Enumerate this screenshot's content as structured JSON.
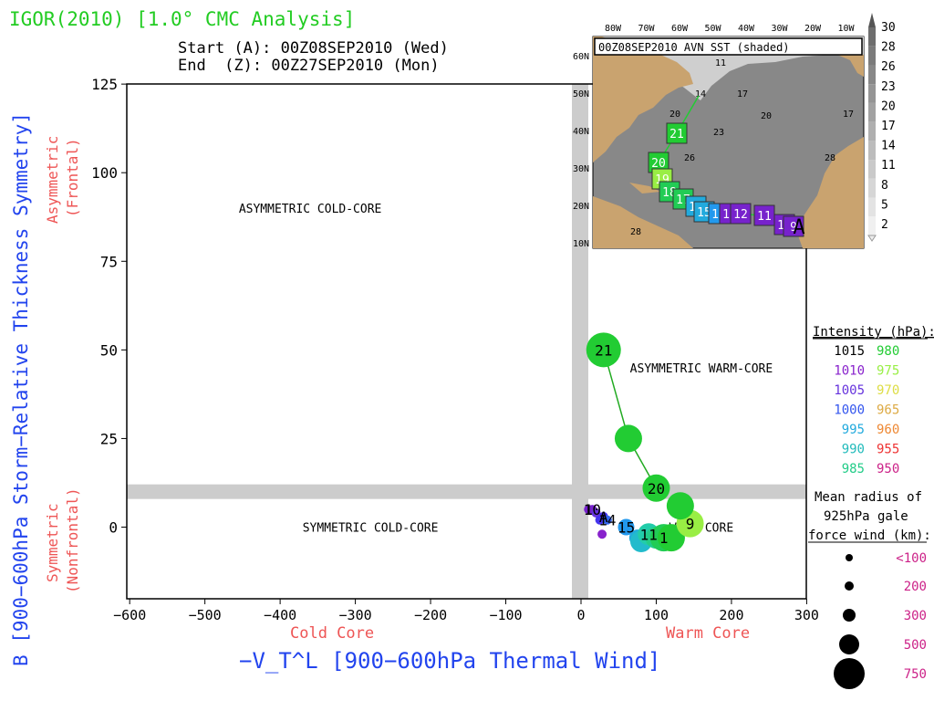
{
  "header": {
    "title": "IGOR(2010) [1.0° CMC Analysis]",
    "start": "Start (A): 00Z08SEP2010 (Wed)",
    "end": "End  (Z): 00Z27SEP2010 (Mon)"
  },
  "colors": {
    "title_green": "#22cc22",
    "axis_blue": "#2244ee",
    "label_red": "#ee5555",
    "track_green": "#22aa22",
    "quadrant_gray": "#cccccc"
  },
  "chart_data": {
    "type": "scatter",
    "xlabel": "−V_T^L [900−600hPa Thermal Wind]",
    "ylabel": "B [900−600hPa Storm−Relative Thickness Symmetry]",
    "xlim": [
      -600,
      300
    ],
    "ylim": [
      -20,
      125
    ],
    "xticks": [
      -600,
      -500,
      -400,
      -300,
      -200,
      -100,
      0,
      100,
      200,
      300
    ],
    "yticks": [
      0,
      25,
      50,
      75,
      100,
      125
    ],
    "x_left_sublabel": "Cold Core",
    "x_right_sublabel": "Warm Core",
    "y_top_sublabel": [
      "Asymmetric",
      "(Frontal)"
    ],
    "y_bottom_sublabel": [
      "Symmetric",
      "(Nonfrontal)"
    ],
    "quadrant_labels": [
      {
        "text": "ASYMMETRIC COLD-CORE",
        "x": -360,
        "y": 90
      },
      {
        "text": "ASYMMETRIC WARM-CORE",
        "x": 160,
        "y": 45
      },
      {
        "text": "SYMMETRIC COLD-CORE",
        "x": -280,
        "y": 0
      },
      {
        "text": "WARM-CORE",
        "x": 160,
        "y": 0
      }
    ],
    "points": [
      {
        "x": 10,
        "y": 5,
        "label": "1",
        "color": "#7722cc",
        "size": 1
      },
      {
        "x": 15,
        "y": 5,
        "label": "10",
        "color": "#7722cc",
        "size": 1
      },
      {
        "x": 20,
        "y": 4,
        "label": "",
        "color": "#6633dd",
        "size": 1
      },
      {
        "x": 25,
        "y": 2,
        "label": "",
        "color": "#4433ee",
        "size": 1
      },
      {
        "x": 30,
        "y": 3,
        "label": "A",
        "color": "#4433ee",
        "size": 1
      },
      {
        "x": 28,
        "y": -2,
        "label": "",
        "color": "#8822cc",
        "size": 1
      },
      {
        "x": 35,
        "y": 2,
        "label": "14",
        "color": "#3366ee",
        "size": 1
      },
      {
        "x": 60,
        "y": 0,
        "label": "15",
        "color": "#2299ee",
        "size": 2
      },
      {
        "x": 75,
        "y": -3,
        "label": "",
        "color": "#22aadd",
        "size": 2
      },
      {
        "x": 80,
        "y": -4,
        "label": "",
        "color": "#22bbcc",
        "size": 3
      },
      {
        "x": 90,
        "y": -2,
        "label": "11",
        "color": "#22ccaa",
        "size": 3
      },
      {
        "x": 100,
        "y": -3,
        "label": "",
        "color": "#22cc88",
        "size": 3
      },
      {
        "x": 110,
        "y": -3,
        "label": "1",
        "color": "#22cc55",
        "size": 4
      },
      {
        "x": 120,
        "y": -3,
        "label": "",
        "color": "#22cc33",
        "size": 4
      },
      {
        "x": 145,
        "y": 1,
        "label": "9",
        "color": "#99ee44",
        "size": 4
      },
      {
        "x": 132,
        "y": 6,
        "label": "",
        "color": "#22cc33",
        "size": 4
      },
      {
        "x": 100,
        "y": 11,
        "label": "20",
        "color": "#22cc33",
        "size": 4
      },
      {
        "x": 63,
        "y": 25,
        "label": "",
        "color": "#22cc33",
        "size": 4
      },
      {
        "x": 30,
        "y": 50,
        "label": "21",
        "color": "#22cc33",
        "size": 5
      }
    ],
    "track_line": [
      {
        "x": 100,
        "y": 11
      },
      {
        "x": 63,
        "y": 25
      },
      {
        "x": 30,
        "y": 50
      }
    ]
  },
  "inset_map": {
    "title": "00Z08SEP2010 AVN SST (shaded)",
    "lon_labels": [
      "80W",
      "70W",
      "60W",
      "50W",
      "40W",
      "30W",
      "20W",
      "10W"
    ],
    "lat_labels": [
      "60N",
      "50N",
      "40N",
      "30N",
      "20N",
      "10N"
    ],
    "sst_contours": [
      "11",
      "14",
      "17",
      "20",
      "23",
      "26",
      "17",
      "20",
      "28",
      "28"
    ],
    "colorbar_labels": [
      "30",
      "28",
      "26",
      "23",
      "20",
      "17",
      "14",
      "11",
      "8",
      "5",
      "2"
    ],
    "track_labels": [
      {
        "label": "21",
        "color": "#22cc33"
      },
      {
        "label": "20",
        "color": "#22cc33"
      },
      {
        "label": "19",
        "color": "#99ee44"
      },
      {
        "label": "18",
        "color": "#22cc55"
      },
      {
        "label": "17",
        "color": "#22cc55"
      },
      {
        "label": "16",
        "color": "#22aadd"
      },
      {
        "label": "15",
        "color": "#22aadd"
      },
      {
        "label": "14",
        "color": "#2299ee"
      },
      {
        "label": "13",
        "color": "#7722cc"
      },
      {
        "label": "12",
        "color": "#7722cc"
      },
      {
        "label": "11",
        "color": "#7722cc"
      },
      {
        "label": "10",
        "color": "#7722cc"
      },
      {
        "label": "9",
        "color": "#7722cc"
      },
      {
        "label": "A",
        "color": "#000000"
      }
    ]
  },
  "legend": {
    "intensity_title": "Intensity (hPa):",
    "intensity_rows": [
      {
        "left": "1015",
        "left_color": "#000000",
        "right": "980",
        "right_color": "#22cc33"
      },
      {
        "left": "1010",
        "left_color": "#8822cc",
        "right": "975",
        "right_color": "#99ee44"
      },
      {
        "left": "1005",
        "left_color": "#6633dd",
        "right": "970",
        "right_color": "#dddd44"
      },
      {
        "left": "1000",
        "left_color": "#3355ee",
        "right": "965",
        "right_color": "#ddaa44"
      },
      {
        "left": "995",
        "left_color": "#22aadd",
        "right": "960",
        "right_color": "#ee8833"
      },
      {
        "left": "990",
        "left_color": "#22bbbb",
        "right": "955",
        "right_color": "#ee3333"
      },
      {
        "left": "985",
        "left_color": "#22cc88",
        "right": "950",
        "right_color": "#cc2288"
      }
    ],
    "radius_title": [
      "Mean radius of",
      "925hPa gale",
      "force wind (km):"
    ],
    "radius_rows": [
      {
        "label": "<100",
        "r": 1
      },
      {
        "label": "200",
        "r": 2
      },
      {
        "label": "300",
        "r": 3
      },
      {
        "label": "500",
        "r": 4
      },
      {
        "label": "750",
        "r": 5
      }
    ]
  }
}
